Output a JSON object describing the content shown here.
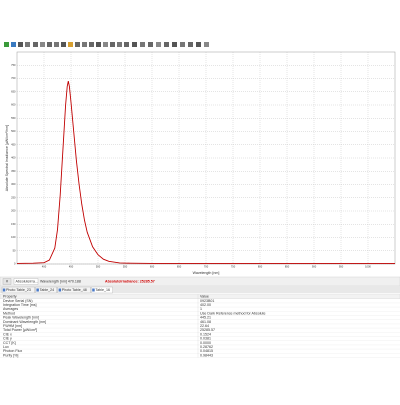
{
  "chart": {
    "type": "line",
    "x_label": "Wavelength [nm]",
    "y_label": "Absolute Spectral Irradiance [µW/cm²/nm]",
    "x": [
      350,
      380,
      400,
      410,
      420,
      425,
      430,
      435,
      440,
      443,
      445,
      447,
      450,
      455,
      460,
      465,
      470,
      475,
      480,
      490,
      500,
      510,
      520,
      540,
      560,
      600,
      700,
      800,
      900,
      1000,
      1050
    ],
    "values": [
      2,
      3,
      5,
      15,
      60,
      130,
      260,
      430,
      600,
      670,
      690,
      670,
      610,
      500,
      390,
      300,
      225,
      165,
      120,
      65,
      35,
      18,
      10,
      4,
      3,
      2,
      2,
      2,
      2,
      2,
      2
    ],
    "color": "#c00000",
    "xlim": [
      350,
      1050
    ],
    "xticks": [
      400,
      450,
      500,
      550,
      600,
      650,
      700,
      750,
      800,
      850,
      900,
      950,
      1000
    ],
    "ylim": [
      0,
      800
    ],
    "yticks": [
      0,
      50,
      100,
      150,
      200,
      250,
      300,
      350,
      400,
      450,
      500,
      550,
      600,
      650,
      700,
      750
    ],
    "grid": true
  },
  "status": {
    "button": "#",
    "mode": "AbsoluteIrra...",
    "cursor": "Wavelength [nm] 470.188",
    "reading": "AbsoluteIrradiance: 25285.57"
  },
  "tabs": [
    "Photo Table_23",
    "Table_24",
    "Photo Table_48",
    "Table_16"
  ],
  "table": {
    "header": [
      "Property",
      "Value"
    ],
    "rows": [
      [
        "Device Serial (SN)",
        "0923B01"
      ],
      [
        "Integration Time [ms]",
        "402.00"
      ],
      [
        "Averages",
        "1"
      ],
      [
        "Method",
        "Use Dark Reference method for Absolute"
      ],
      [
        "Peak Wavelength [nm]",
        "445.21"
      ],
      [
        "Dominant Wavelength [nm]",
        "461.08"
      ],
      [
        "FWHM [nm]",
        "22.64"
      ],
      [
        "Total Power [µW/cm²]",
        "25285.57"
      ],
      [
        "CIE x",
        "0.1524"
      ],
      [
        "CIE y",
        "0.0381"
      ],
      [
        "CCT [K]",
        "0.0000"
      ],
      [
        "Lux",
        "0.28762"
      ],
      [
        "Photon Flux",
        "0.04815"
      ],
      [
        "Purity [%]",
        "0.98443"
      ]
    ]
  }
}
